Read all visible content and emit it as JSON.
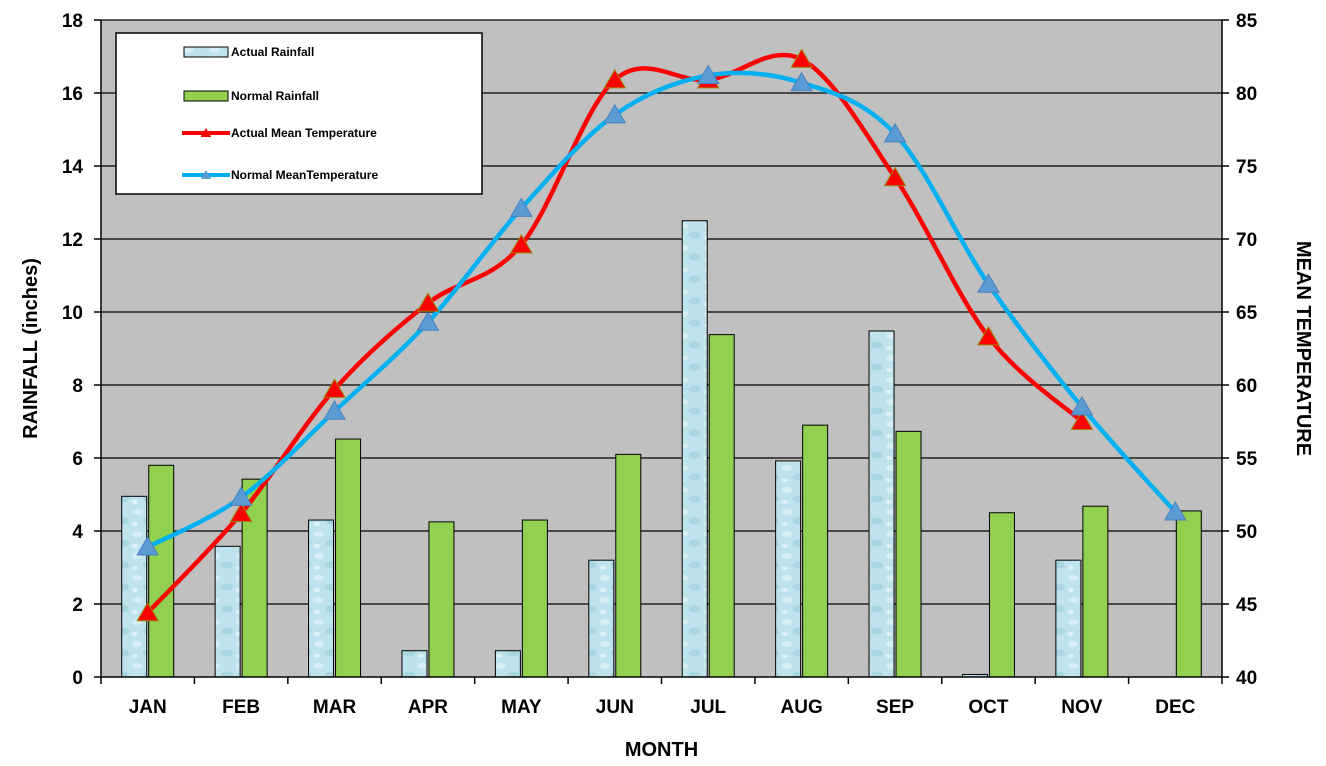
{
  "chart_data": {
    "type": "bar",
    "categories": [
      "JAN",
      "FEB",
      "MAR",
      "APR",
      "MAY",
      "JUN",
      "JUL",
      "AUG",
      "SEP",
      "OCT",
      "NOV",
      "DEC"
    ],
    "xlabel": "MONTH",
    "ylabel": "RAINFALL (inches)",
    "y2label": "MEAN TEMPERATURE",
    "ylim": [
      0,
      18
    ],
    "yticks": [
      0,
      2,
      4,
      6,
      8,
      10,
      12,
      14,
      16,
      18
    ],
    "y2lim": [
      40,
      85
    ],
    "y2ticks": [
      40,
      45,
      50,
      55,
      60,
      65,
      70,
      75,
      80,
      85
    ],
    "grid": true,
    "legend_position": "top-left",
    "series": [
      {
        "name": "Actual Rainfall",
        "kind": "bar",
        "axis": "left",
        "color": "#bfe3ec",
        "values": [
          4.95,
          3.58,
          4.3,
          0.72,
          0.72,
          3.2,
          12.5,
          5.92,
          9.48,
          0.07,
          3.2,
          null
        ]
      },
      {
        "name": "Normal Rainfall",
        "kind": "bar",
        "axis": "left",
        "color": "#92d050",
        "values": [
          5.8,
          5.42,
          6.52,
          4.25,
          4.3,
          6.1,
          9.38,
          6.9,
          6.73,
          4.5,
          4.68,
          4.55
        ]
      },
      {
        "name": "Actual Mean Temperature",
        "kind": "line",
        "axis": "right",
        "color": "#ff0000",
        "marker_color": "#ff0000",
        "values": [
          44.4,
          51.2,
          59.7,
          65.6,
          69.6,
          80.9,
          80.9,
          82.3,
          74.2,
          63.3,
          57.5,
          null
        ]
      },
      {
        "name": "Normal MeanTemperature",
        "kind": "line",
        "axis": "right",
        "color": "#00b0f0",
        "marker_color": "#5b9bd5",
        "values": [
          48.9,
          52.3,
          58.2,
          64.3,
          72.1,
          78.5,
          81.2,
          80.7,
          77.2,
          66.9,
          58.5,
          51.3
        ]
      }
    ]
  },
  "colors": {
    "plot_background": "#c0c0c0",
    "gridline": "#000000"
  }
}
